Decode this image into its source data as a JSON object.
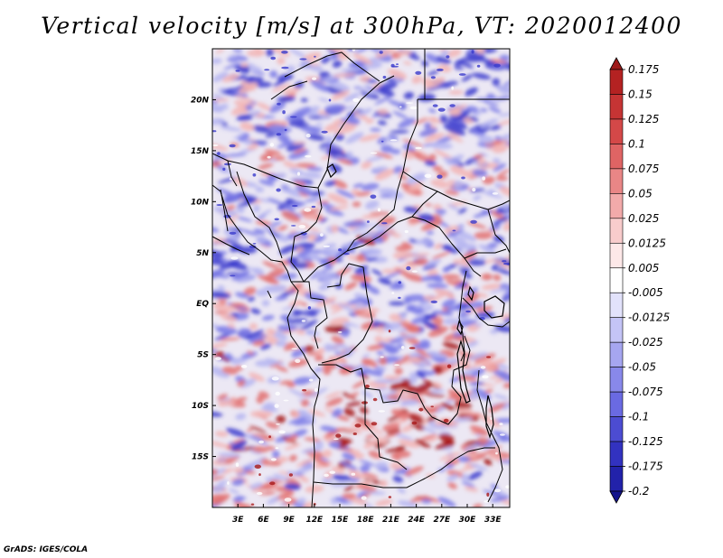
{
  "title": "Vertical velocity [m/s] at 300hPa, VT: 2020012400",
  "credit": "GrADS: IGES/COLA",
  "map": {
    "region": "Central Africa",
    "lon_range": [
      0,
      35
    ],
    "lat_range": [
      -20,
      25
    ],
    "lon_ticks": [
      {
        "value": 3,
        "label": "3E"
      },
      {
        "value": 6,
        "label": "6E"
      },
      {
        "value": 9,
        "label": "9E"
      },
      {
        "value": 12,
        "label": "12E"
      },
      {
        "value": 15,
        "label": "15E"
      },
      {
        "value": 18,
        "label": "18E"
      },
      {
        "value": 21,
        "label": "21E"
      },
      {
        "value": 24,
        "label": "24E"
      },
      {
        "value": 27,
        "label": "27E"
      },
      {
        "value": 30,
        "label": "30E"
      },
      {
        "value": 33,
        "label": "33E"
      }
    ],
    "lat_ticks": [
      {
        "value": 20,
        "label": "20N"
      },
      {
        "value": 15,
        "label": "15N"
      },
      {
        "value": 10,
        "label": "10N"
      },
      {
        "value": 5,
        "label": "5N"
      },
      {
        "value": 0,
        "label": "EQ"
      },
      {
        "value": -5,
        "label": "5S"
      },
      {
        "value": -10,
        "label": "10S"
      },
      {
        "value": -15,
        "label": "15S"
      }
    ]
  },
  "colorbar": {
    "labels": [
      "0.175",
      "0.15",
      "0.125",
      "0.1",
      "0.075",
      "0.05",
      "0.025",
      "0.0125",
      "0.005",
      "-0.005",
      "-0.0125",
      "-0.025",
      "-0.05",
      "-0.075",
      "-0.1",
      "-0.125",
      "-0.175",
      "-0.2"
    ],
    "colors": [
      "#9e1a1a",
      "#b42222",
      "#c63434",
      "#d44848",
      "#df6464",
      "#e98686",
      "#f2aaaa",
      "#f8cccc",
      "#fde8e8",
      "#ffffff",
      "#e2e2fb",
      "#c4c4f6",
      "#a6a6f0",
      "#8888ea",
      "#6a6ae2",
      "#4c4cd2",
      "#3232c0",
      "#2222aa",
      "#14148c"
    ]
  },
  "field_colors": {
    "strong_up": "#a81818",
    "up": "#e27272",
    "weak_up": "#f2b4b4",
    "neutral": "#ece8f4",
    "weak_down": "#b4b4f0",
    "down": "#7a7ae6",
    "strong_down": "#3a3acc"
  }
}
